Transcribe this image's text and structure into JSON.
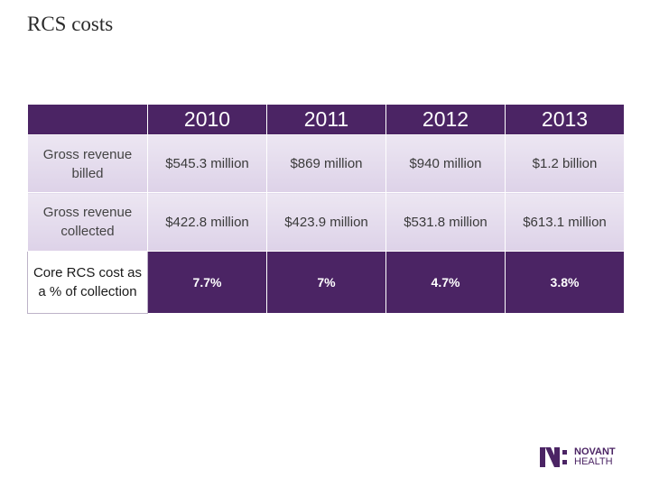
{
  "slide": {
    "title": "RCS costs"
  },
  "table": {
    "years": [
      "2010",
      "2011",
      "2012",
      "2013"
    ],
    "rows": [
      {
        "label": "Gross revenue billed",
        "values": [
          "$545.3 million",
          "$869 million",
          "$940 million",
          "$1.2 billion"
        ]
      },
      {
        "label": "Gross revenue collected",
        "values": [
          "$422.8 million",
          "$423.9 million",
          "$531.8 million",
          "$613.1 million"
        ]
      },
      {
        "label": "Core RCS cost as a % of collection",
        "values": [
          "7.7%",
          "7%",
          "4.7%",
          "3.8%"
        ]
      }
    ]
  },
  "logo": {
    "line1": "NOVANT",
    "line2": "HEALTH"
  },
  "colors": {
    "brand_purple": "#4b2464",
    "light_row": "#e4dcec"
  }
}
